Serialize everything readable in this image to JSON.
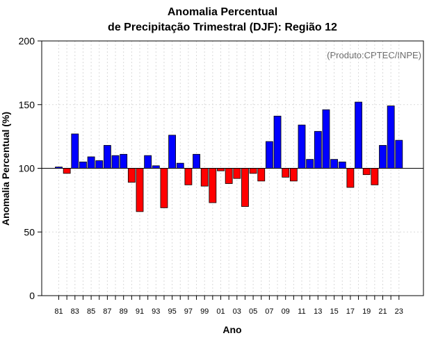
{
  "chart_data": {
    "type": "bar",
    "title": "Anomalia Percentual",
    "subtitle": "de Precipitação Trimestral (DJF): Região 12",
    "xlabel": "Ano",
    "ylabel": "Anomalia Percentual (%)",
    "source": "(Produto:CPTEC/INPE)",
    "baseline": 100,
    "ylim": [
      0,
      200
    ],
    "yticks": [
      0,
      50,
      100,
      150,
      200
    ],
    "grid": true,
    "colors": {
      "above": "#0000ff",
      "below": "#ff0000",
      "baseline": "#000000",
      "grid": "#d9d9d9"
    },
    "categories": [
      "81",
      "82",
      "83",
      "84",
      "85",
      "86",
      "87",
      "88",
      "89",
      "90",
      "91",
      "92",
      "93",
      "94",
      "95",
      "96",
      "97",
      "98",
      "99",
      "00",
      "01",
      "02",
      "03",
      "04",
      "05",
      "06",
      "07",
      "08",
      "09",
      "10",
      "11",
      "12",
      "13",
      "14",
      "15",
      "16",
      "17",
      "18",
      "19",
      "20",
      "21",
      "22",
      "23"
    ],
    "xtick_labels": [
      "81",
      "83",
      "85",
      "87",
      "89",
      "91",
      "93",
      "95",
      "97",
      "99",
      "01",
      "03",
      "05",
      "07",
      "09",
      "11",
      "13",
      "15",
      "17",
      "19",
      "21",
      "23"
    ],
    "values": [
      101,
      96,
      127,
      105,
      109,
      106,
      118,
      110,
      111,
      89,
      66,
      110,
      102,
      69,
      126,
      104,
      87,
      111,
      86,
      73,
      98,
      88,
      92,
      70,
      96,
      90,
      121,
      141,
      93,
      90,
      134,
      107,
      129,
      146,
      107,
      105,
      85,
      152,
      95,
      87,
      118,
      149,
      122
    ]
  }
}
